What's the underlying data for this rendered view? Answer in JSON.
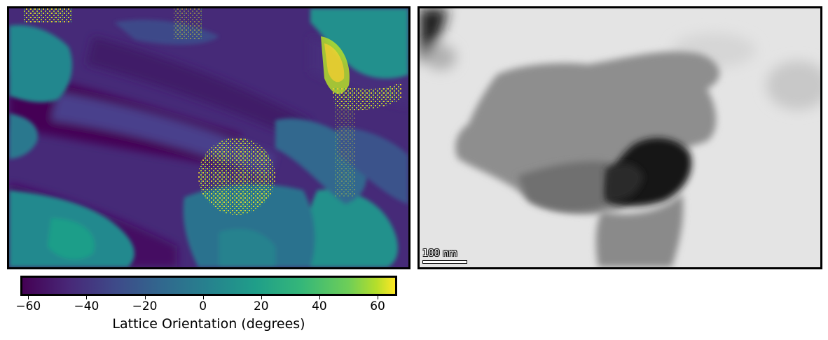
{
  "colorbar": {
    "label": "Lattice Orientation (degrees)",
    "ticks": [
      "−60",
      "−40",
      "−20",
      "0",
      "20",
      "40",
      "60"
    ],
    "range": [
      -62,
      66
    ],
    "colormap": "viridis"
  },
  "tem": {
    "scalebar_label": "100 nm"
  },
  "colors": {
    "viridis_low": "#440154",
    "viridis_mid": "#26828e",
    "viridis_high": "#fde725"
  }
}
